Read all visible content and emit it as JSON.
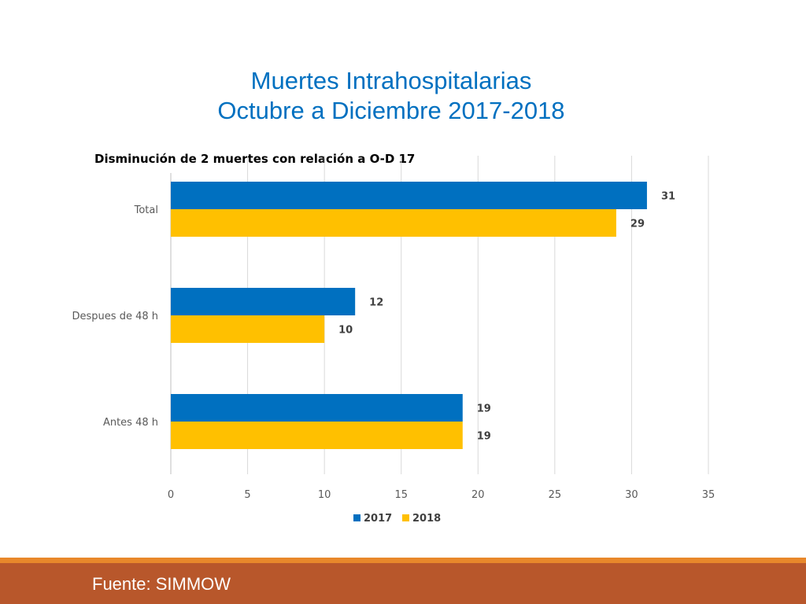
{
  "slide": {
    "title_line1": "Muertes Intrahospitalarias",
    "title_line2": "Octubre a Diciembre 2017-2018",
    "footer_text": "Fuente: SIMMOW"
  },
  "colors": {
    "series_2017": "#0070c0",
    "series_2018": "#ffc000",
    "footer_bar": "#b8572b",
    "footer_strip": "#e8882b",
    "title": "#0070c0"
  },
  "chart_data": {
    "type": "bar",
    "orientation": "horizontal",
    "title": "Disminución de 2 muertes con relación a O-D 17",
    "categories": [
      "Total",
      "Despues de 48 h",
      "Antes 48 h"
    ],
    "series": [
      {
        "name": "2017",
        "values": [
          31,
          12,
          19
        ]
      },
      {
        "name": "2018",
        "values": [
          29,
          10,
          19
        ]
      }
    ],
    "xlim": [
      0,
      35
    ],
    "xticks": [
      0,
      5,
      10,
      15,
      20,
      25,
      30,
      35
    ],
    "grid": true,
    "legend": "bottom",
    "data_labels": true
  }
}
